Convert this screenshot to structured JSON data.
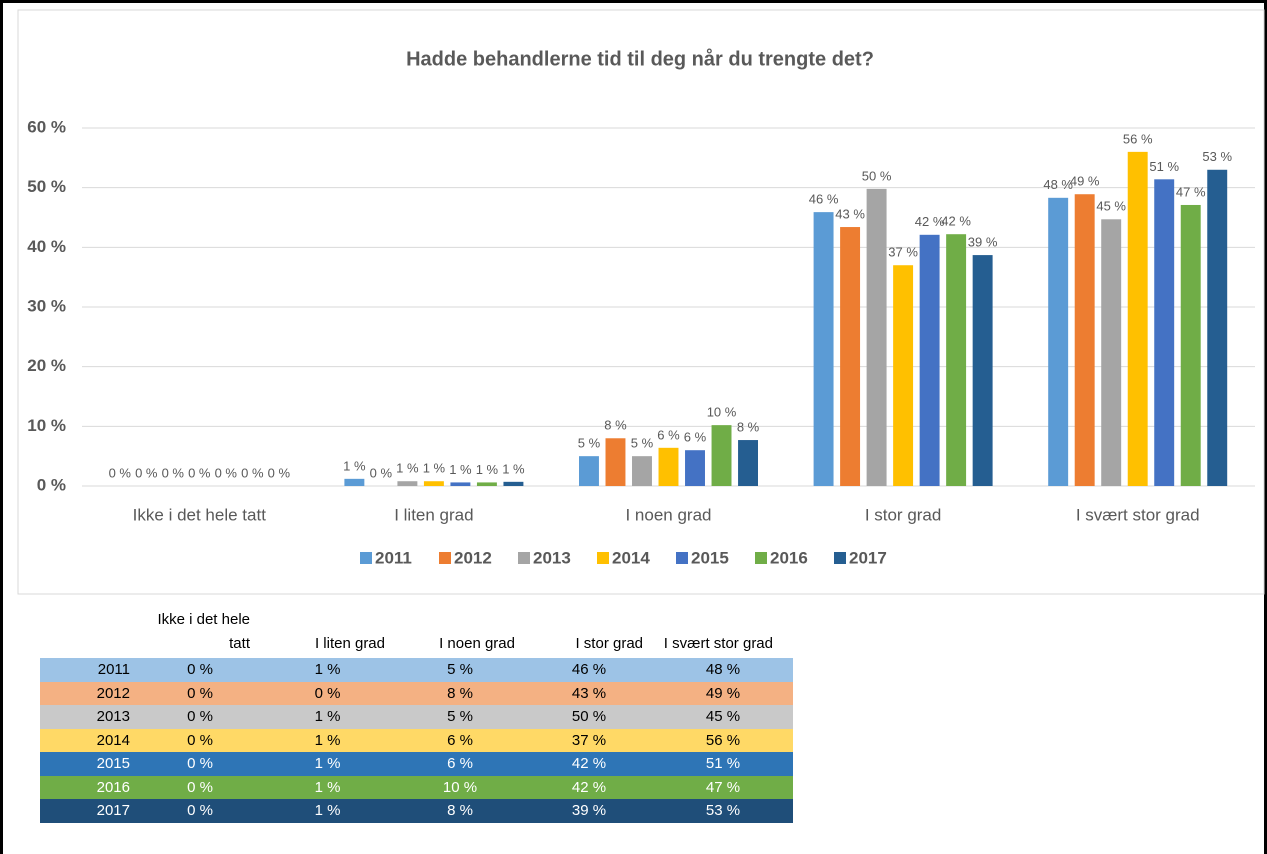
{
  "chart_data": {
    "type": "bar",
    "title": "Hadde behandlerne tid til deg når du trengte det?",
    "categories": [
      "Ikke i det hele tatt",
      "I liten grad",
      "I noen grad",
      "I stor grad",
      "I svært stor grad"
    ],
    "series": [
      {
        "name": "2011",
        "color": "#5b9bd5",
        "values": [
          0,
          1.2,
          5.0,
          45.9,
          48.3
        ],
        "value_labels": [
          "0 %",
          "1 %",
          "5 %",
          "46 %",
          "48 %"
        ]
      },
      {
        "name": "2012",
        "color": "#ed7d31",
        "values": [
          0,
          0,
          8.0,
          43.4,
          48.9
        ],
        "value_labels": [
          "0 %",
          "0 %",
          "8 %",
          "43 %",
          "49 %"
        ]
      },
      {
        "name": "2013",
        "color": "#a5a5a5",
        "values": [
          0,
          0.8,
          5.0,
          49.8,
          44.7
        ],
        "value_labels": [
          "0 %",
          "1 %",
          "5 %",
          "50 %",
          "45 %"
        ]
      },
      {
        "name": "2014",
        "color": "#ffc000",
        "values": [
          0,
          0.8,
          6.4,
          37.0,
          56.0
        ],
        "value_labels": [
          "0 %",
          "1 %",
          "6 %",
          "37 %",
          "56 %"
        ]
      },
      {
        "name": "2015",
        "color": "#4472c4",
        "values": [
          0,
          0.6,
          6.0,
          42.1,
          51.4
        ],
        "value_labels": [
          "0 %",
          "1 %",
          "6 %",
          "42 %",
          "51 %"
        ]
      },
      {
        "name": "2016",
        "color": "#70ad47",
        "values": [
          0,
          0.6,
          10.2,
          42.2,
          47.1
        ],
        "value_labels": [
          "0 %",
          "1 %",
          "10 %",
          "42 %",
          "47 %"
        ]
      },
      {
        "name": "2017",
        "color": "#255e91",
        "values": [
          0,
          0.7,
          7.7,
          38.7,
          53.0
        ],
        "value_labels": [
          "0 %",
          "1 %",
          "8 %",
          "39 %",
          "53 %"
        ]
      }
    ],
    "ylim": [
      0,
      60
    ],
    "yticks": [
      {
        "value": 0,
        "label": "0 %"
      },
      {
        "value": 10,
        "label": "10 %"
      },
      {
        "value": 20,
        "label": "20 %"
      },
      {
        "value": 30,
        "label": "30 %"
      },
      {
        "value": 40,
        "label": "40 %"
      },
      {
        "value": 50,
        "label": "50 %"
      },
      {
        "value": 60,
        "label": "60 %"
      }
    ],
    "grid": true,
    "legend": "bottom"
  },
  "table": {
    "columns": [
      "Ikke i det hele tatt",
      "I liten grad",
      "I noen grad",
      "I stor grad",
      "I svært stor grad"
    ],
    "rows": [
      {
        "year": "2011",
        "cells": [
          "0 %",
          "1 %",
          "5 %",
          "46 %",
          "48 %"
        ]
      },
      {
        "year": "2012",
        "cells": [
          "0 %",
          "0 %",
          "8 %",
          "43 %",
          "49 %"
        ]
      },
      {
        "year": "2013",
        "cells": [
          "0 %",
          "1 %",
          "5 %",
          "50 %",
          "45 %"
        ]
      },
      {
        "year": "2014",
        "cells": [
          "0 %",
          "1 %",
          "6 %",
          "37 %",
          "56 %"
        ]
      },
      {
        "year": "2015",
        "cells": [
          "0 %",
          "1 %",
          "6 %",
          "42 %",
          "51 %"
        ]
      },
      {
        "year": "2016",
        "cells": [
          "0 %",
          "1 %",
          "10 %",
          "42 %",
          "47 %"
        ]
      },
      {
        "year": "2017",
        "cells": [
          "0 %",
          "1 %",
          "8 %",
          "39 %",
          "53 %"
        ]
      }
    ]
  }
}
